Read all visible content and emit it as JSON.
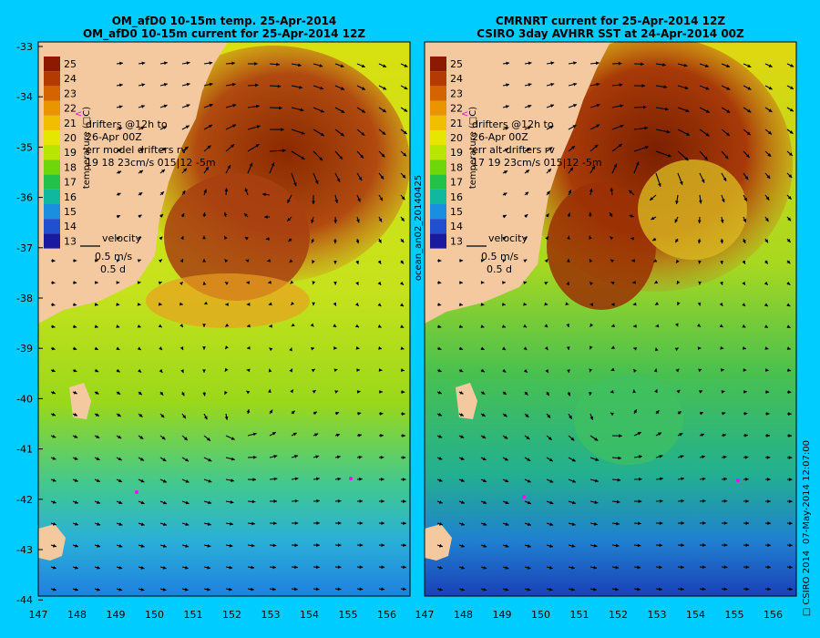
{
  "panels": [
    {
      "id": "left",
      "title_line1": "OM_afD0 10-15m temp. 25-Apr-2014",
      "title_line2": "OM_afD0 10-15m current for 25-Apr-2014 12Z",
      "drifter_lines": [
        "drifters @12h to",
        "26-Apr 00Z",
        "err model drifters rv",
        "19    18    23cm/s 015|12 -5m"
      ],
      "velocity_label": "velocity",
      "velocity_scale": "0.5 m/s",
      "velocity_days": "0.5 d",
      "side_label": ""
    },
    {
      "id": "right",
      "title_line1": "CMRNRT current for 25-Apr-2014 12Z",
      "title_line2": "CSIRO 3day AVHRR SST at 24-Apr-2014 00Z",
      "drifter_lines": [
        "drifters @12h to",
        "26-Apr 00Z",
        "err alt drifters rv",
        "17 19 23cm/s 015|12 -5m"
      ],
      "velocity_label": "velocity",
      "velocity_scale": "0.5 m/s",
      "velocity_days": "0.5 d",
      "side_label": "ocean_an02_20140425"
    }
  ],
  "colorbar": {
    "label": "temperature (□C)",
    "ticks": [
      "25",
      "24",
      "23",
      "22",
      "21",
      "20",
      "19",
      "18",
      "17",
      "16",
      "15",
      "14",
      "13"
    ],
    "colors": [
      "#8b1a00",
      "#b33a00",
      "#d46400",
      "#e89500",
      "#f0c000",
      "#e6e600",
      "#b8e600",
      "#6ed60a",
      "#22c24a",
      "#10b8a0",
      "#1a8fe0",
      "#2050d0",
      "#1a1aa0"
    ]
  },
  "axes": {
    "lat_ticks": [
      "-33",
      "-34",
      "-35",
      "-36",
      "-37",
      "-38",
      "-39",
      "-40",
      "-41",
      "-42",
      "-43",
      "-44"
    ],
    "lon_ticks": [
      "147",
      "148",
      "149",
      "150",
      "151",
      "152",
      "153",
      "154",
      "155",
      "156"
    ]
  },
  "footer": {
    "timestamp": "07-May-2014 12:07:00",
    "copyright": "□ CSIRO 2014"
  },
  "colors": {
    "background": "#00ccff",
    "land": "#f5c9a0",
    "warm_core": "#a8400a",
    "drifter": "#ff00ff"
  }
}
